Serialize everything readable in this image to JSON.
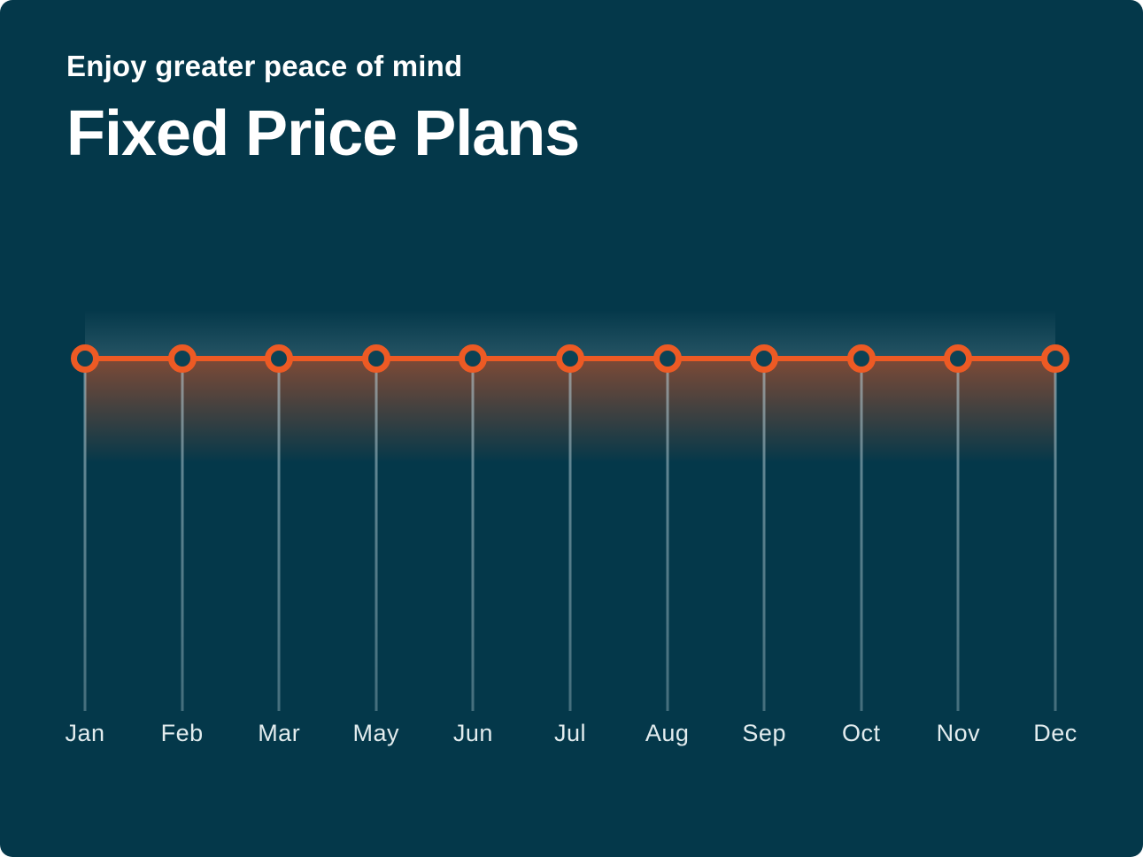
{
  "header": {
    "subtitle": "Enjoy greater peace of mind",
    "title": "Fixed Price Plans"
  },
  "colors": {
    "page_background": "#FFFFFF",
    "card_background": "#04384A",
    "accent_orange": "#ED5A24",
    "title_text": "#FFFFFF",
    "month_label_text": "#E2ECEE",
    "dropline": "#B0C8D0",
    "marker_fill": "#0C4254"
  },
  "chart_data": {
    "type": "line",
    "title": "Fixed Price Plans",
    "subtitle": "Enjoy greater peace of mind",
    "categories": [
      "Jan",
      "Feb",
      "Mar",
      "May",
      "Jun",
      "Jul",
      "Aug",
      "Sep",
      "Oct",
      "Nov",
      "Dec"
    ],
    "values": [
      1,
      1,
      1,
      1,
      1,
      1,
      1,
      1,
      1,
      1,
      1
    ],
    "xlabel": "",
    "ylabel": "",
    "ylim": [
      0,
      1
    ],
    "grid": false,
    "legend_position": "none",
    "annotations": "Flat horizontal line at a constant level - every month has the same fixed price; no y-axis or numeric values are shown; month labels skip Apr",
    "marker_style": "hollow orange ring with dark teal fill",
    "area_style": "orange gradient fading downward below the line"
  }
}
